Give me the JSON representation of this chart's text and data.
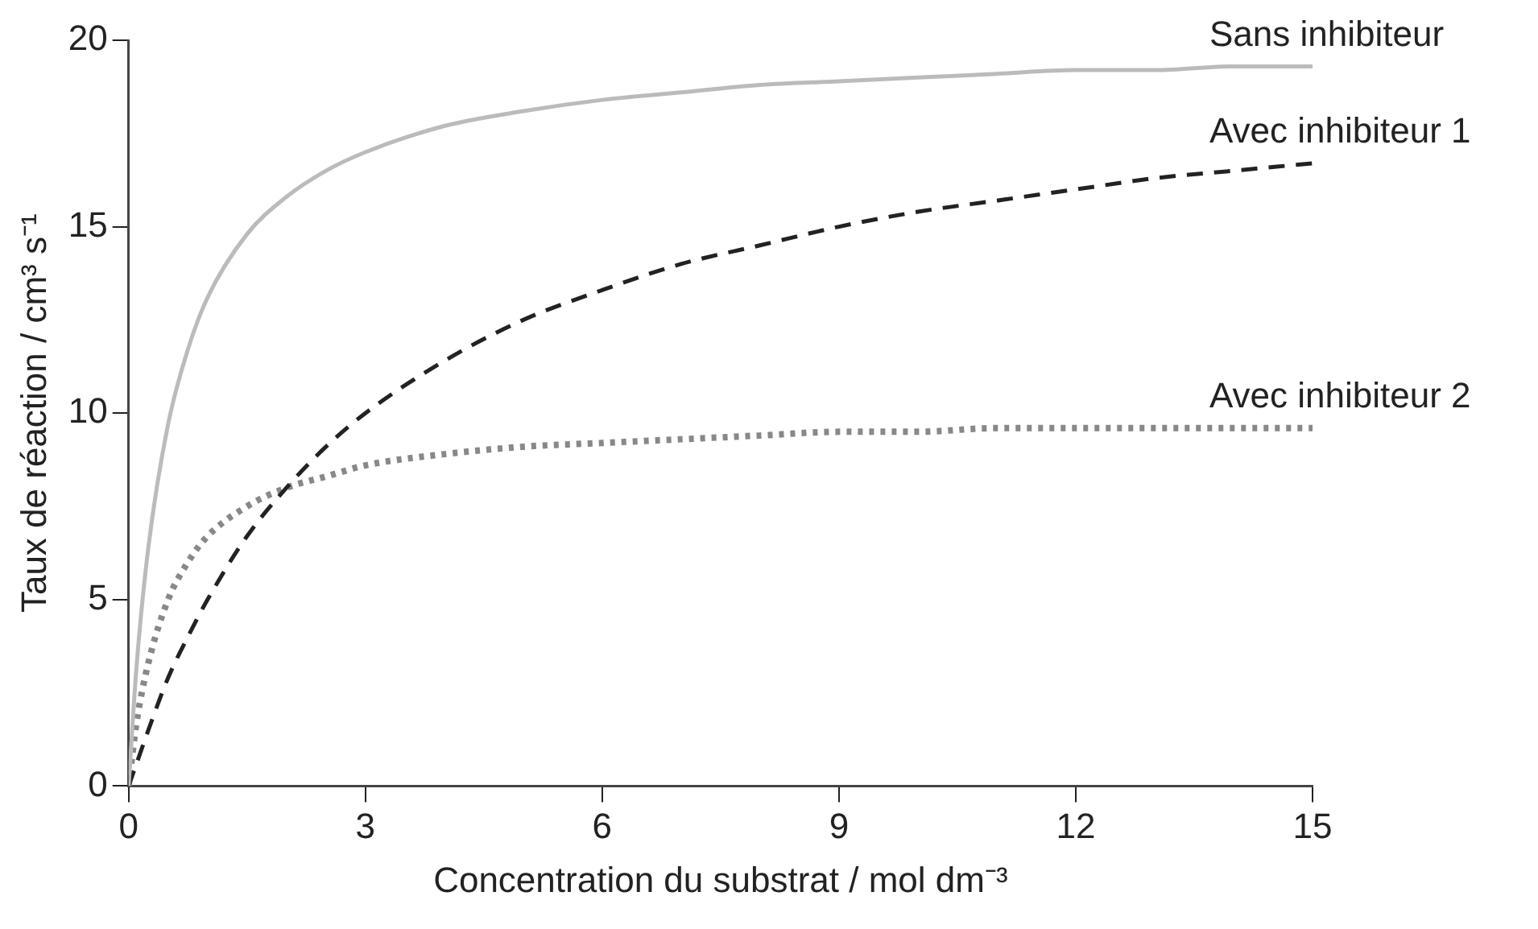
{
  "chart_data": {
    "type": "line",
    "xlabel": "Concentration du substrat / mol dm⁻³",
    "ylabel": "Taux de réaction / cm³ s⁻¹",
    "x": [
      0,
      0.1,
      0.25,
      0.5,
      0.75,
      1,
      1.5,
      2,
      2.5,
      3,
      4,
      5,
      6,
      7,
      8,
      9,
      10,
      11,
      12,
      13,
      14,
      15
    ],
    "series": [
      {
        "name": "Sans inhibiteur",
        "color": "#bbbbbb",
        "line_style": "solid",
        "values": [
          0,
          3.2,
          6.4,
          9.7,
          11.7,
          13.1,
          14.8,
          15.8,
          16.5,
          17.0,
          17.7,
          18.1,
          18.4,
          18.6,
          18.8,
          18.9,
          19.0,
          19.1,
          19.2,
          19.2,
          19.3,
          19.3
        ]
      },
      {
        "name": "Avec inhibiteur 1",
        "color": "#222222",
        "line_style": "dashed",
        "values": [
          0,
          0.6,
          1.5,
          2.9,
          4.0,
          5.0,
          6.7,
          8.0,
          9.1,
          10.0,
          11.4,
          12.5,
          13.3,
          14.0,
          14.5,
          15.0,
          15.4,
          15.7,
          16.0,
          16.3,
          16.5,
          16.7
        ]
      },
      {
        "name": "Avec inhibiteur 2",
        "color": "#888888",
        "line_style": "dotted",
        "values": [
          0,
          1.7,
          3.3,
          5.0,
          6.0,
          6.7,
          7.5,
          8.0,
          8.3,
          8.6,
          8.9,
          9.1,
          9.2,
          9.3,
          9.4,
          9.5,
          9.5,
          9.6,
          9.6,
          9.6,
          9.6,
          9.6
        ]
      }
    ],
    "xlim": [
      0,
      15
    ],
    "xticks": [
      0,
      3,
      6,
      9,
      12,
      15
    ],
    "ylim": [
      0,
      20
    ],
    "yticks": [
      0,
      5,
      10,
      15,
      20
    ],
    "grid": false,
    "legend": false,
    "marker": "none"
  }
}
